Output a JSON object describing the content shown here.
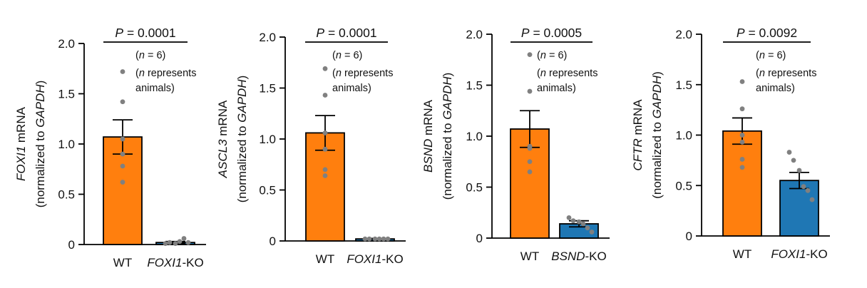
{
  "colors": {
    "wt": "#ff7f0e",
    "ko": "#1f77b4",
    "dot": "#808080",
    "axis": "#000000"
  },
  "chart_data": [
    {
      "type": "bar",
      "gene": "FOXI1",
      "ylabel_suffix": " mRNA",
      "ylabel_line2_prefix": "(normalized to ",
      "ylabel_line2_gene": "GAPDH",
      "ylabel_line2_suffix": ")",
      "ylim": [
        0,
        2.0
      ],
      "ticks": [
        0,
        0.5,
        1.0,
        1.5,
        2.0
      ],
      "tick_labels": [
        "0",
        "0.5",
        "1.0",
        "1.5",
        "2.0"
      ],
      "categories": [
        {
          "plain": "WT"
        },
        {
          "italic": "FOXI1",
          "plain": "-KO"
        }
      ],
      "values": [
        1.07,
        0.02
      ],
      "sem": [
        0.17,
        0.01
      ],
      "points": [
        [
          1.72,
          1.42,
          1.05,
          0.9,
          0.78,
          0.62
        ],
        [
          0.01,
          0.02,
          0.01,
          0.03,
          0.06,
          0.02
        ]
      ],
      "pvalue": {
        "label": "P",
        "text": " = 0.0001"
      },
      "n_note": {
        "open": "(",
        "n": "n",
        "eq": " = 6)"
      },
      "n_note2": {
        "open": "(",
        "n": "n",
        "rest": " represents",
        "line2": "animals)"
      }
    },
    {
      "type": "bar",
      "gene": "ASCL3",
      "ylabel_suffix": " mRNA",
      "ylabel_line2_prefix": "(normalized to ",
      "ylabel_line2_gene": "GAPDH",
      "ylabel_line2_suffix": ")",
      "ylim": [
        0,
        2.0
      ],
      "ticks": [
        0,
        0.5,
        1.0,
        1.5,
        2.0
      ],
      "tick_labels": [
        "0",
        "0.5",
        "1.0",
        "1.5",
        "2.0"
      ],
      "categories": [
        {
          "plain": "WT"
        },
        {
          "italic": "FOXI1",
          "plain": "-KO"
        }
      ],
      "values": [
        1.06,
        0.02
      ],
      "sem": [
        0.17,
        0.005
      ],
      "points": [
        [
          1.69,
          1.43,
          1.06,
          0.9,
          0.7,
          0.64
        ],
        [
          0.02,
          0.02,
          0.02,
          0.02,
          0.02,
          0.02
        ]
      ],
      "pvalue": {
        "label": "P",
        "text": " = 0.0001"
      },
      "n_note": {
        "open": "(",
        "n": "n",
        "eq": " = 6)"
      },
      "n_note2": {
        "open": "(",
        "n": "n",
        "rest": " represents",
        "line2": "animals)"
      }
    },
    {
      "type": "bar",
      "gene": "BSND",
      "ylabel_suffix": " mRNA",
      "ylabel_line2_prefix": "(normalized to ",
      "ylabel_line2_gene": "GAPDH",
      "ylabel_line2_suffix": ")",
      "ylim": [
        0,
        2.0
      ],
      "ticks": [
        0,
        0.5,
        1.0,
        1.5,
        2.0
      ],
      "tick_labels": [
        "0",
        "0.5",
        "1.0",
        "1.5",
        "2.0"
      ],
      "categories": [
        {
          "plain": "WT"
        },
        {
          "italic": "BSND",
          "plain": "-KO"
        }
      ],
      "values": [
        1.07,
        0.14
      ],
      "sem": [
        0.18,
        0.03
      ],
      "points": [
        [
          1.8,
          1.44,
          0.9,
          0.88,
          0.75,
          0.65
        ],
        [
          0.2,
          0.17,
          0.16,
          0.14,
          0.1,
          0.06
        ]
      ],
      "pvalue": {
        "label": "P",
        "text": " = 0.0005"
      },
      "n_note": {
        "open": "(",
        "n": "n",
        "eq": " = 6)"
      },
      "n_note2": {
        "open": "(",
        "n": "n",
        "rest": " represents",
        "line2": "animals)"
      }
    },
    {
      "type": "bar",
      "gene": "CFTR",
      "ylabel_suffix": " mRNA",
      "ylabel_line2_prefix": "(normalized to ",
      "ylabel_line2_gene": "GAPDH",
      "ylabel_line2_suffix": ")",
      "ylim": [
        0,
        2.0
      ],
      "ticks": [
        0,
        0.5,
        1.0,
        1.5,
        2.0
      ],
      "tick_labels": [
        "0",
        "0.5",
        "1.0",
        "1.5",
        "2.0"
      ],
      "categories": [
        {
          "plain": "WT"
        },
        {
          "italic": "FOXI1",
          "plain": "-KO"
        }
      ],
      "values": [
        1.04,
        0.55
      ],
      "sem": [
        0.13,
        0.08
      ],
      "points": [
        [
          1.53,
          1.26,
          1.0,
          0.93,
          0.76,
          0.68
        ],
        [
          0.83,
          0.75,
          0.65,
          0.49,
          0.45,
          0.36
        ]
      ],
      "pvalue": {
        "label": "P",
        "text": " = 0.0092"
      },
      "n_note": {
        "open": "(",
        "n": "n",
        "eq": " = 6)"
      },
      "n_note2": {
        "open": "(",
        "n": "n",
        "rest": " represents",
        "line2": "animals)"
      }
    }
  ]
}
